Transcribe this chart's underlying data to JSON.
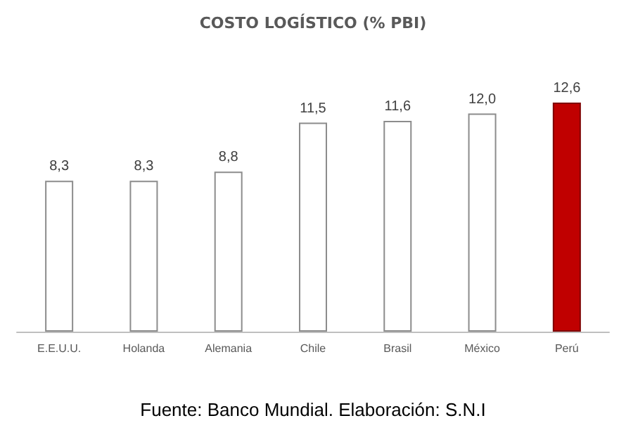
{
  "chart_data": {
    "type": "bar",
    "title": "COSTO LOGÍSTICO (% PBI)",
    "categories": [
      "E.E.U.U.",
      "Holanda",
      "Alemania",
      "Chile",
      "Brasil",
      "México",
      "Perú"
    ],
    "values": [
      8.3,
      8.3,
      8.8,
      11.5,
      11.6,
      12.0,
      12.6
    ],
    "colors": [
      "#ffffff",
      "#ffffff",
      "#ffffff",
      "#ffffff",
      "#ffffff",
      "#ffffff",
      "#c00000"
    ],
    "value_labels": [
      "8,3",
      "8,3",
      "8,8",
      "11,5",
      "11,6",
      "12,0",
      "12,6"
    ],
    "annotations": [
      "Fuente: Banco Mundial. Elaboración: S.N.I"
    ]
  }
}
